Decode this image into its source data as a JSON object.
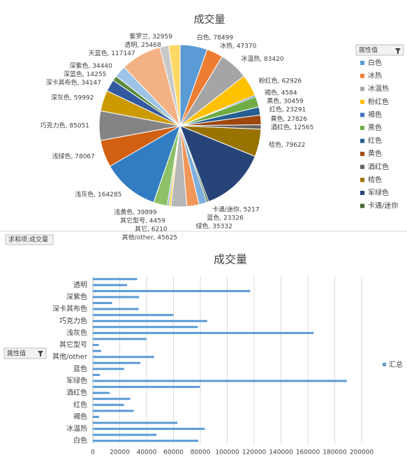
{
  "chart_data": [
    {
      "type": "pie",
      "title": "成交量",
      "legend_title": "属性值",
      "legend_position": "right",
      "categories": [
        "白色",
        "冰热",
        "冰温热",
        "粉红色",
        "褐色",
        "黑色",
        "红色",
        "黄色",
        "酒红色",
        "桔色",
        "军绿色",
        "卡通/迷你",
        "蓝色",
        "绿色",
        "其他/other",
        "其它",
        "其它型号",
        "浅黄色",
        "浅灰色",
        "浅绿色",
        "巧克力色",
        "深灰色",
        "深卡其布色",
        "深蓝色",
        "深紫色",
        "天蓝色",
        "透明",
        "紫罗兰"
      ],
      "values": [
        78499,
        47370,
        83420,
        62926,
        4584,
        30459,
        23291,
        27826,
        12565,
        79622,
        189000,
        5217,
        23326,
        35332,
        45625,
        6210,
        4459,
        39899,
        164285,
        78067,
        85051,
        59992,
        34147,
        14255,
        34440,
        117147,
        25468,
        32959
      ],
      "value_labels": [
        "白色, 78499",
        "冰热, 47370",
        "冰温热, 83420",
        "粉红色, 62926",
        "褐色, 4584",
        "黑色, 30459",
        "红色, 23291",
        "黄色, 27826",
        "酒红色, 12565",
        "桔色, 79622",
        null,
        "卡通/迷你, 5217",
        "蓝色, 23326",
        "绿色, 35332",
        "其他/other, 45625",
        "其它, 6210",
        "其它型号, 4459",
        "浅黄色, 39899",
        "浅灰色, 164285",
        "浅绿色, 78067",
        "巧克力色, 85051",
        "深灰色, 59992",
        "深卡其布色, 34147",
        "深蓝色, 14255",
        "深紫色, 34440",
        "天蓝色, 117147",
        "透明, 25468",
        "紫罗兰, 32959"
      ],
      "colors": [
        "#5b9bd5",
        "#ed7d31",
        "#a5a5a5",
        "#ffc000",
        "#4472c4",
        "#70ad47",
        "#255e91",
        "#9e480e",
        "#636363",
        "#997300",
        "#264478",
        "#43682b",
        "#7cafdd",
        "#f1975a",
        "#b7b7b7",
        "#ffcd33",
        "#698ed0",
        "#8cc168",
        "#327dc2",
        "#d26012",
        "#848484",
        "#cc9a00",
        "#335aa1",
        "#5a8a39",
        "#9dc3e6",
        "#f4b183",
        "#c9c9c9",
        "#ffd966"
      ],
      "legend_visible_count": 12
    },
    {
      "type": "hbar",
      "title": "成交量",
      "field_button": "求和项:成交量",
      "axis_button": "属性值",
      "legend_position": "right",
      "categories": [
        "白色",
        null,
        "冰温热",
        null,
        "褐色",
        null,
        "红色",
        null,
        "酒红色",
        null,
        "军绿色",
        null,
        "蓝色",
        null,
        "其他/other",
        null,
        "其它型号",
        null,
        "浅灰色",
        null,
        "巧克力色",
        null,
        "深卡其布色",
        null,
        "深紫色",
        null,
        "透明",
        null
      ],
      "series": [
        {
          "name": "汇总",
          "color": "#5b9bd5",
          "values": [
            78499,
            47370,
            83420,
            62926,
            4584,
            30459,
            23291,
            27826,
            12565,
            79622,
            189000,
            5217,
            23326,
            35332,
            45625,
            6210,
            4459,
            39899,
            164285,
            78067,
            85051,
            59992,
            34147,
            14255,
            34440,
            117147,
            25468,
            32959
          ]
        }
      ],
      "xlim": [
        0,
        200000
      ],
      "xticks": [
        0,
        20000,
        40000,
        60000,
        80000,
        100000,
        120000,
        140000,
        160000,
        180000,
        200000
      ],
      "grid": true
    }
  ]
}
